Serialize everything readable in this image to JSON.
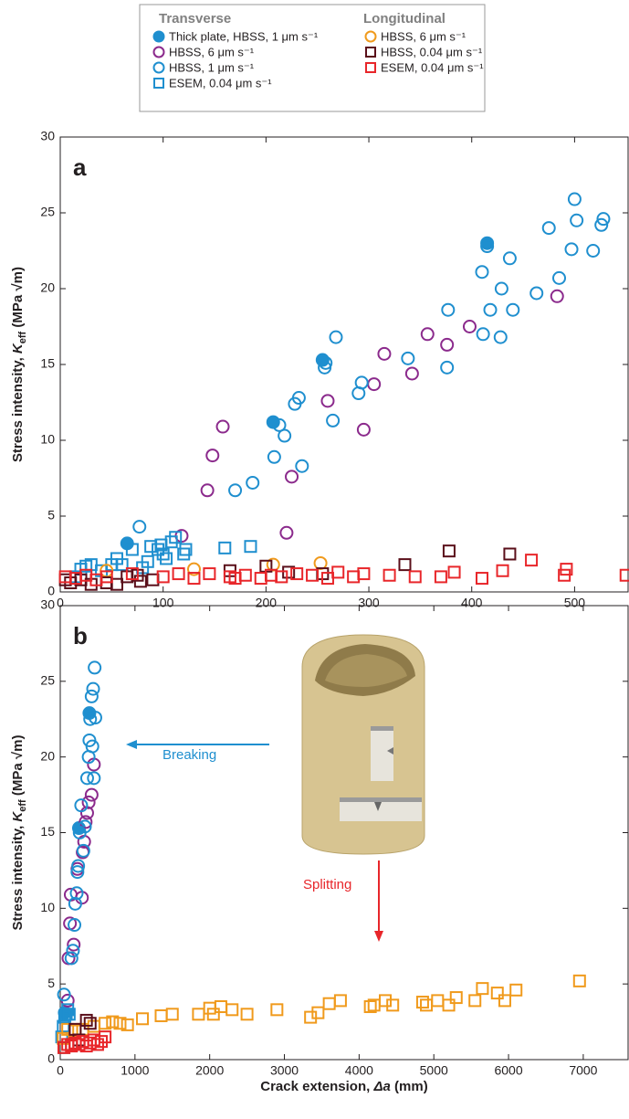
{
  "legend_titles": [
    "Transverse",
    "Longitudinal"
  ],
  "chart_data": [
    {
      "type": "scatter",
      "panel_label": "a",
      "ylabel": [
        "Stress intensity, ",
        "K",
        "eff",
        " (MPa √m)"
      ],
      "xlim": [
        0,
        552
      ],
      "ylim": [
        0,
        30
      ],
      "xticks": [
        0,
        100,
        200,
        300,
        400,
        500
      ],
      "yticks": [
        0,
        5,
        10,
        15,
        20,
        25,
        30
      ],
      "series": [
        {
          "name": "Thick plate, HBSS, 1 μm s⁻¹",
          "color": "#1f8fcf",
          "marker": "circle-filled",
          "x": [
            65,
            207,
            255,
            415
          ],
          "values": [
            3.2,
            11.2,
            15.3,
            23.0
          ]
        },
        {
          "name": "HBSS, 6 μm s⁻¹",
          "color": "#8b2a8c",
          "marker": "circle",
          "x": [
            118,
            143,
            148,
            158,
            220,
            225,
            260,
            295,
            305,
            315,
            342,
            357,
            376,
            398,
            483
          ],
          "values": [
            3.7,
            6.7,
            9.0,
            10.9,
            3.9,
            7.6,
            12.6,
            10.7,
            13.7,
            15.7,
            14.4,
            17.0,
            16.3,
            17.5,
            19.5
          ]
        },
        {
          "name": "HBSS, 1 μm s⁻¹",
          "color": "#1f8fcf",
          "marker": "circle",
          "x": [
            77,
            170,
            187,
            208,
            213,
            218,
            228,
            232,
            235,
            257,
            258,
            265,
            268,
            290,
            293,
            338,
            376,
            377,
            410,
            411,
            415,
            418,
            428,
            429,
            437,
            440,
            463,
            475,
            485,
            497,
            500,
            502,
            518,
            526,
            528
          ],
          "values": [
            4.3,
            6.7,
            7.2,
            8.9,
            11.0,
            10.3,
            12.4,
            12.8,
            8.3,
            14.8,
            15.1,
            11.3,
            16.8,
            13.1,
            13.8,
            15.4,
            14.8,
            18.6,
            21.1,
            17.0,
            22.8,
            18.6,
            16.8,
            20.0,
            22.0,
            18.6,
            19.7,
            24.0,
            20.7,
            22.6,
            25.9,
            24.5,
            22.5,
            24.2,
            24.6
          ]
        },
        {
          "name": "ESEM, 0.04 μm s⁻¹",
          "color": "#1f8fcf",
          "marker": "square",
          "x": [
            15,
            20,
            25,
            30,
            40,
            50,
            55,
            60,
            70,
            80,
            85,
            88,
            95,
            98,
            100,
            103,
            108,
            112,
            120,
            122,
            160,
            185
          ],
          "values": [
            1.0,
            1.5,
            1.7,
            1.8,
            1.4,
            1.8,
            2.2,
            1.8,
            2.8,
            1.6,
            2.0,
            3.0,
            2.8,
            3.1,
            2.5,
            2.2,
            3.3,
            3.6,
            2.5,
            2.8,
            2.9,
            3.0
          ]
        },
        {
          "name": "HBSS, 6 μm s⁻¹",
          "color": "#f09a1c",
          "marker": "circle",
          "x": [
            45,
            130,
            207,
            253
          ],
          "values": [
            1.4,
            1.5,
            1.8,
            1.9
          ]
        },
        {
          "name": "HBSS, 0.04 μm s⁻¹",
          "color": "#5a0f1a",
          "marker": "square",
          "x": [
            5,
            10,
            20,
            30,
            45,
            55,
            65,
            75,
            78,
            90,
            165,
            200,
            222,
            255,
            335,
            378,
            437
          ],
          "values": [
            0.8,
            0.6,
            0.8,
            0.5,
            0.6,
            0.5,
            1.0,
            1.1,
            0.7,
            0.8,
            1.4,
            1.7,
            1.3,
            1.2,
            1.8,
            2.7,
            2.5
          ]
        },
        {
          "name": "ESEM, 0.04 μm s⁻¹",
          "color": "#e8262a",
          "marker": "square",
          "x": [
            5,
            15,
            25,
            35,
            45,
            70,
            100,
            115,
            130,
            145,
            165,
            170,
            180,
            195,
            205,
            215,
            230,
            245,
            260,
            270,
            285,
            295,
            320,
            345,
            370,
            383,
            410,
            430,
            458,
            490,
            492,
            550
          ],
          "values": [
            1.0,
            0.9,
            1.1,
            0.8,
            1.0,
            1.2,
            1.0,
            1.2,
            0.9,
            1.2,
            1.0,
            0.9,
            1.1,
            0.9,
            1.1,
            1.0,
            1.2,
            1.1,
            0.9,
            1.3,
            1.0,
            1.2,
            1.1,
            1.0,
            1.0,
            1.3,
            0.9,
            1.4,
            2.1,
            1.1,
            1.5,
            1.1
          ]
        }
      ]
    },
    {
      "type": "scatter",
      "panel_label": "b",
      "ylabel": [
        "Stress intensity, ",
        "K",
        "eff",
        " (MPa √m)"
      ],
      "xlabel": [
        "Crack extension, ",
        "Δa",
        " (mm)"
      ],
      "xlim": [
        0,
        7600
      ],
      "ylim": [
        0,
        30
      ],
      "xticks": [
        0,
        1000,
        2000,
        3000,
        4000,
        5000,
        6000,
        7000
      ],
      "yticks": [
        0,
        5,
        10,
        15,
        20,
        25,
        30
      ],
      "annotations": [
        "Breaking",
        "Splitting"
      ],
      "series": [
        {
          "color": "#1f8fcf",
          "marker": "circle-filled",
          "x": [
            60,
            250,
            390
          ],
          "values": [
            3.1,
            15.3,
            22.9
          ]
        },
        {
          "color": "#8b2a8c",
          "marker": "circle",
          "x": [
            100,
            110,
            130,
            140,
            180,
            230,
            290,
            300,
            320,
            340,
            360,
            380,
            420,
            450
          ],
          "values": [
            3.9,
            6.7,
            9.0,
            10.9,
            7.6,
            12.6,
            10.7,
            13.7,
            14.4,
            15.7,
            16.3,
            17.0,
            17.5,
            19.5
          ]
        },
        {
          "color": "#1f8fcf",
          "marker": "circle",
          "x": [
            50,
            150,
            170,
            190,
            200,
            220,
            230,
            240,
            260,
            280,
            310,
            330,
            360,
            380,
            390,
            400,
            420,
            440,
            460,
            470,
            450,
            430
          ],
          "values": [
            4.3,
            6.7,
            7.2,
            8.9,
            10.3,
            11.0,
            12.4,
            12.8,
            15.0,
            16.8,
            13.8,
            15.4,
            18.6,
            20.0,
            21.1,
            22.5,
            24.0,
            24.5,
            25.9,
            22.6,
            18.6,
            20.7
          ]
        },
        {
          "color": "#1f8fcf",
          "marker": "square",
          "x": [
            20,
            40,
            60,
            80,
            100,
            120
          ],
          "values": [
            1.5,
            2.2,
            2.8,
            3.0,
            3.3,
            3.0
          ]
        },
        {
          "color": "#f09a1c",
          "marker": "square",
          "x": [
            40,
            100,
            200,
            300,
            450,
            600,
            700,
            800,
            900,
            1100,
            1350,
            1500,
            1850,
            2000,
            2050,
            2150,
            2300,
            2500,
            2900,
            3350,
            3450,
            3600,
            3750,
            4150,
            4200,
            4350,
            4450,
            4850,
            4900,
            5050,
            5200,
            5300,
            5550,
            5650,
            5850,
            5950,
            6100,
            6950
          ],
          "values": [
            1.4,
            2.0,
            1.9,
            2.0,
            2.2,
            2.4,
            2.5,
            2.4,
            2.3,
            2.7,
            2.9,
            3.0,
            3.0,
            3.4,
            3.0,
            3.5,
            3.3,
            3.0,
            3.3,
            2.8,
            3.1,
            3.7,
            3.9,
            3.5,
            3.6,
            3.9,
            3.6,
            3.8,
            3.6,
            3.9,
            3.6,
            4.1,
            3.9,
            4.7,
            4.4,
            3.9,
            4.6,
            5.2
          ]
        },
        {
          "color": "#5a0f1a",
          "marker": "square",
          "x": [
            50,
            150,
            200,
            250,
            350,
            400
          ],
          "values": [
            0.8,
            1.0,
            2.0,
            1.3,
            2.6,
            2.4
          ]
        },
        {
          "color": "#e8262a",
          "marker": "square",
          "x": [
            50,
            100,
            150,
            200,
            250,
            300,
            350,
            400,
            450,
            500,
            550,
            600
          ],
          "values": [
            0.8,
            1.0,
            0.9,
            1.1,
            1.0,
            1.2,
            0.9,
            1.1,
            1.3,
            1.0,
            1.2,
            1.5
          ]
        }
      ]
    }
  ]
}
